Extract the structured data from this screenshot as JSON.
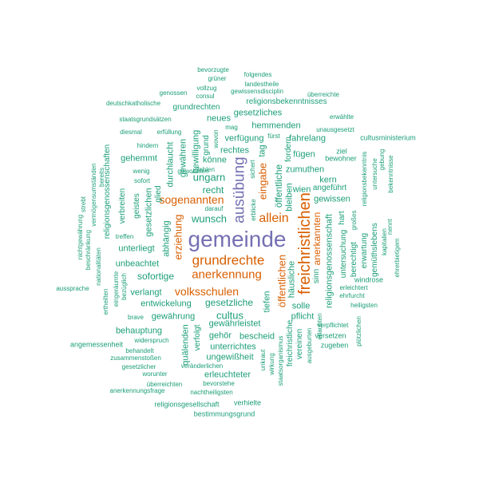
{
  "palette": {
    "teal": "#1b9e77",
    "orange": "#d95f02",
    "purple": "#7570b3"
  },
  "words": [
    {
      "text": "gemeinde",
      "color": "purple"
    },
    {
      "text": "freichristlichen",
      "color": "orange"
    },
    {
      "text": "ausübung",
      "color": "purple"
    },
    {
      "text": "grundrechte",
      "color": "orange"
    },
    {
      "text": "allein",
      "color": "orange"
    },
    {
      "text": "anerkennung",
      "color": "orange"
    },
    {
      "text": "volksschulen",
      "color": "orange"
    },
    {
      "text": "sogenannten",
      "color": "orange"
    },
    {
      "text": "öffentlichen",
      "color": "orange"
    },
    {
      "text": "anerkannten",
      "color": "orange"
    },
    {
      "text": "eingabe",
      "color": "orange"
    },
    {
      "text": "erziehung",
      "color": "orange"
    },
    {
      "text": "cultus",
      "color": "teal"
    },
    {
      "text": "wunsch",
      "color": "teal"
    },
    {
      "text": "sofortige",
      "color": "teal"
    },
    {
      "text": "gesetzliche",
      "color": "teal"
    },
    {
      "text": "ungarn",
      "color": "teal"
    },
    {
      "text": "recht",
      "color": "teal"
    },
    {
      "text": "öffentliche",
      "color": "teal"
    },
    {
      "text": "religionsgenossenschaft",
      "color": "teal"
    },
    {
      "text": "unbeachtet",
      "color": "teal"
    },
    {
      "text": "unterliegt",
      "color": "teal"
    },
    {
      "text": "verlangt",
      "color": "teal"
    },
    {
      "text": "entwickelung",
      "color": "teal"
    },
    {
      "text": "gewährung",
      "color": "teal"
    },
    {
      "text": "gewährleistet",
      "color": "teal"
    },
    {
      "text": "behauptung",
      "color": "teal"
    },
    {
      "text": "gesetzlichen",
      "color": "teal"
    },
    {
      "text": "abhängig",
      "color": "teal"
    },
    {
      "text": "gehemmt",
      "color": "teal"
    },
    {
      "text": "geistes",
      "color": "teal"
    },
    {
      "text": "verbreiten",
      "color": "teal"
    },
    {
      "text": "glied",
      "color": "teal"
    },
    {
      "text": "durchlaucht",
      "color": "teal"
    },
    {
      "text": "gewähren",
      "color": "teal"
    },
    {
      "text": "bewilligung",
      "color": "teal"
    },
    {
      "text": "grund",
      "color": "teal"
    },
    {
      "text": "neues",
      "color": "teal"
    },
    {
      "text": "rechtes",
      "color": "teal"
    },
    {
      "text": "verfügung",
      "color": "teal"
    },
    {
      "text": "tag",
      "color": "teal"
    },
    {
      "text": "hemmenden",
      "color": "teal"
    },
    {
      "text": "fahrelang",
      "color": "teal"
    },
    {
      "text": "gesetzliches",
      "color": "teal"
    },
    {
      "text": "grundrechten",
      "color": "teal"
    },
    {
      "text": "religionsbekenntnisses",
      "color": "teal"
    },
    {
      "text": "fügen",
      "color": "teal"
    },
    {
      "text": "zumuthen",
      "color": "teal"
    },
    {
      "text": "kern",
      "color": "teal"
    },
    {
      "text": "angeführt",
      "color": "teal"
    },
    {
      "text": "gewissen",
      "color": "teal"
    },
    {
      "text": "wien",
      "color": "teal"
    },
    {
      "text": "bleiben",
      "color": "teal"
    },
    {
      "text": "fordern",
      "color": "teal"
    },
    {
      "text": "könne",
      "color": "teal"
    },
    {
      "text": "untersuchung",
      "color": "teal"
    },
    {
      "text": "hart",
      "color": "teal"
    },
    {
      "text": "berechtigt",
      "color": "teal"
    },
    {
      "text": "erwartung",
      "color": "teal"
    },
    {
      "text": "gemüthslebens",
      "color": "teal"
    },
    {
      "text": "sinn",
      "color": "teal"
    },
    {
      "text": "häusliche",
      "color": "teal"
    },
    {
      "text": "solle",
      "color": "teal"
    },
    {
      "text": "pflicht",
      "color": "teal"
    },
    {
      "text": "tiefen",
      "color": "teal"
    },
    {
      "text": "bescheid",
      "color": "teal"
    },
    {
      "text": "gehör",
      "color": "teal"
    },
    {
      "text": "unterrichtes",
      "color": "teal"
    },
    {
      "text": "ungewißheit",
      "color": "teal"
    },
    {
      "text": "erleuchteter",
      "color": "teal"
    },
    {
      "text": "quälenden",
      "color": "teal"
    },
    {
      "text": "verfolgt",
      "color": "teal"
    },
    {
      "text": "ziel",
      "color": "teal"
    },
    {
      "text": "bewohner",
      "color": "teal"
    },
    {
      "text": "unausgesetzt",
      "color": "teal"
    },
    {
      "text": "erwählte",
      "color": "teal"
    },
    {
      "text": "cultusministerium",
      "color": "teal"
    },
    {
      "text": "religionsbekenntnis",
      "color": "teal"
    },
    {
      "text": "bekenntnisse",
      "color": "teal"
    },
    {
      "text": "untersuche",
      "color": "teal"
    },
    {
      "text": "gebung",
      "color": "teal"
    },
    {
      "text": "großes",
      "color": "teal"
    },
    {
      "text": "kapitalien",
      "color": "teal"
    },
    {
      "text": "nennt",
      "color": "teal"
    },
    {
      "text": "ehrerbietigem",
      "color": "teal"
    },
    {
      "text": "windrose",
      "color": "teal"
    },
    {
      "text": "erleichtert",
      "color": "teal"
    },
    {
      "text": "ehrfurcht",
      "color": "teal"
    },
    {
      "text": "heiligsten",
      "color": "teal"
    },
    {
      "text": "verpflichtet",
      "color": "teal"
    },
    {
      "text": "versetzen",
      "color": "teal"
    },
    {
      "text": "zugeben",
      "color": "teal"
    },
    {
      "text": "plötzlichen",
      "color": "teal"
    },
    {
      "text": "erlaubten",
      "color": "teal"
    },
    {
      "text": "ausgeburten",
      "color": "teal"
    },
    {
      "text": "vereinen",
      "color": "teal"
    },
    {
      "text": "freichristliche",
      "color": "teal"
    },
    {
      "text": "staatsorganismus",
      "color": "teal"
    },
    {
      "text": "wirkung",
      "color": "teal"
    },
    {
      "text": "unkraut",
      "color": "teal"
    },
    {
      "text": "verhielte",
      "color": "teal"
    },
    {
      "text": "bestimmungsgrund",
      "color": "teal"
    },
    {
      "text": "religionsgesellschaft",
      "color": "teal"
    },
    {
      "text": "nachtheiligsten",
      "color": "teal"
    },
    {
      "text": "bevorstehe",
      "color": "teal"
    },
    {
      "text": "überreichten",
      "color": "teal"
    },
    {
      "text": "veränderlichen",
      "color": "teal"
    },
    {
      "text": "worunter",
      "color": "teal"
    },
    {
      "text": "anerkennungsfrage",
      "color": "teal"
    },
    {
      "text": "gesetzlicher",
      "color": "teal"
    },
    {
      "text": "zusammenstoßen",
      "color": "teal"
    },
    {
      "text": "behandelt",
      "color": "teal"
    },
    {
      "text": "widerspruch",
      "color": "teal"
    },
    {
      "text": "angemessenheit",
      "color": "teal"
    },
    {
      "text": "brave",
      "color": "teal"
    },
    {
      "text": "eingeräumte",
      "color": "teal"
    },
    {
      "text": "bezüglich",
      "color": "teal"
    },
    {
      "text": "ertheilten",
      "color": "teal"
    },
    {
      "text": "aussprache",
      "color": "teal"
    },
    {
      "text": "nationalitäten",
      "color": "teal"
    },
    {
      "text": "beschränkung",
      "color": "teal"
    },
    {
      "text": "nichtgewährung",
      "color": "teal"
    },
    {
      "text": "treffen",
      "color": "teal"
    },
    {
      "text": "religionsgenossenschaften",
      "color": "teal"
    },
    {
      "text": "vermögensumständen",
      "color": "teal"
    },
    {
      "text": "strebt",
      "color": "teal"
    },
    {
      "text": "bereits",
      "color": "teal"
    },
    {
      "text": "hindern",
      "color": "teal"
    },
    {
      "text": "wenig",
      "color": "teal"
    },
    {
      "text": "sofort",
      "color": "teal"
    },
    {
      "text": "diesmal",
      "color": "teal"
    },
    {
      "text": "erfüllung",
      "color": "teal"
    },
    {
      "text": "staatsgrundsätzen",
      "color": "teal"
    },
    {
      "text": "deutschkatholische",
      "color": "teal"
    },
    {
      "text": "genossen",
      "color": "teal"
    },
    {
      "text": "vollzug",
      "color": "teal"
    },
    {
      "text": "consul",
      "color": "teal"
    },
    {
      "text": "grüner",
      "color": "teal"
    },
    {
      "text": "bevorzugte",
      "color": "teal"
    },
    {
      "text": "folgendes",
      "color": "teal"
    },
    {
      "text": "landestheile",
      "color": "teal"
    },
    {
      "text": "gewissensdisciplin",
      "color": "teal"
    },
    {
      "text": "überreichte",
      "color": "teal"
    },
    {
      "text": "mag",
      "color": "teal"
    },
    {
      "text": "fürst",
      "color": "teal"
    },
    {
      "text": "wovon",
      "color": "teal"
    },
    {
      "text": "gewohnten",
      "color": "teal"
    },
    {
      "text": "fehlen",
      "color": "teal"
    },
    {
      "text": "darauf",
      "color": "teal"
    },
    {
      "text": "erblicke",
      "color": "teal"
    },
    {
      "text": "sichert",
      "color": "teal"
    }
  ]
}
